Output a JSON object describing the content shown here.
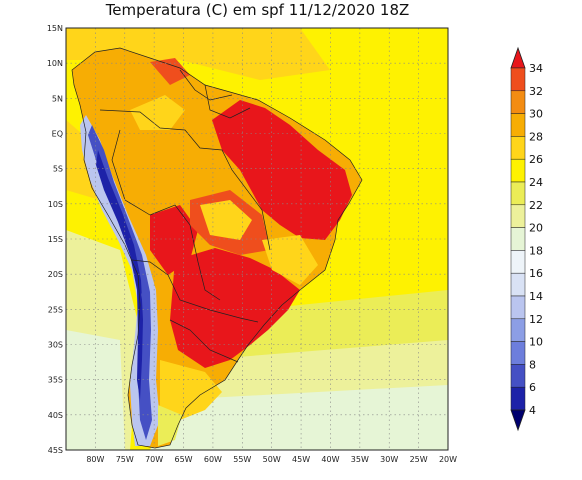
{
  "title": "Temperatura (C) em spf 11/12/2020 18Z",
  "map": {
    "lon_range": [
      -85,
      -20
    ],
    "lat_range": [
      -45,
      15
    ],
    "lat_ticks": [
      "15N",
      "10N",
      "5N",
      "EQ",
      "5S",
      "10S",
      "15S",
      "20S",
      "25S",
      "30S",
      "35S",
      "40S",
      "45S"
    ],
    "lon_ticks": [
      "80W",
      "75W",
      "70W",
      "65W",
      "60W",
      "55W",
      "50W",
      "45W",
      "40W",
      "35W",
      "30W",
      "25W",
      "20W"
    ],
    "grid": true
  },
  "colorbar": {
    "labels": [
      "34",
      "32",
      "30",
      "28",
      "26",
      "24",
      "22",
      "20",
      "18",
      "16",
      "14",
      "12",
      "10",
      "8",
      "6",
      "4"
    ],
    "colors": [
      "#e8161b",
      "#ef4e1d",
      "#f38c12",
      "#f7ad04",
      "#ffd51a",
      "#fef201",
      "#ebed57",
      "#edf19b",
      "#e6f5d6",
      "#eef4f9",
      "#d9e2f5",
      "#bac5ef",
      "#8c9ee5",
      "#6d7edc",
      "#4550c4",
      "#1d22a8",
      "#00006e"
    ]
  },
  "colors": {
    "ocean_warm": "#fef201",
    "ocean_mild": "#ebed57",
    "ocean_cool": "#edf19b",
    "ocean_cold": "#e6f5d6",
    "land_warm": "#f7ad04",
    "land_hot": "#e8161b",
    "andes": "#4550c4"
  }
}
